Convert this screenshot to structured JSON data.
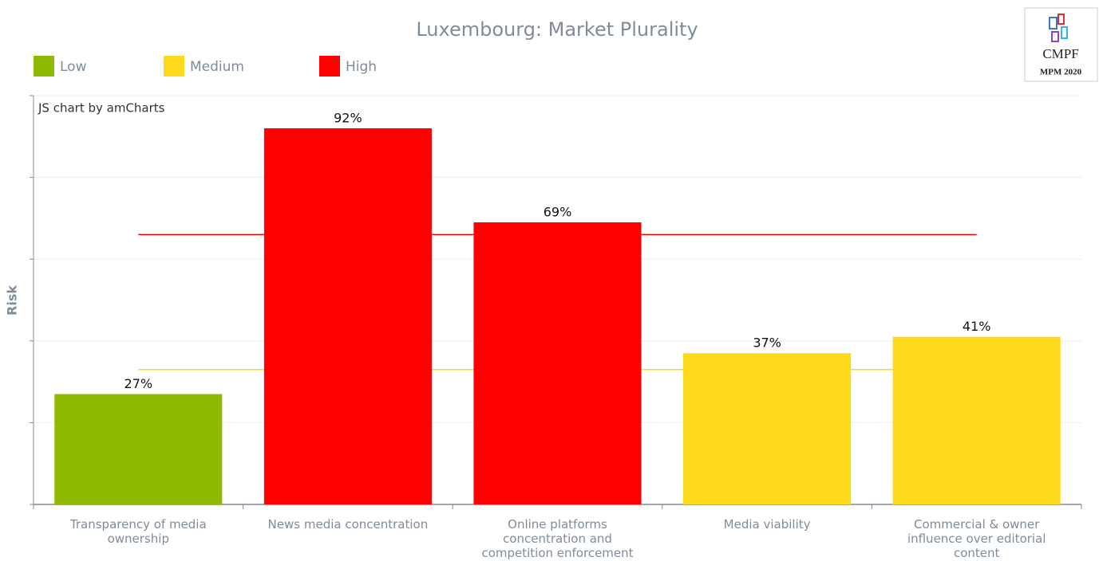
{
  "chart_data": {
    "type": "bar",
    "title": "Luxembourg: Market Plurality",
    "credit": "JS chart by amCharts",
    "ylabel": "Risk",
    "logo": {
      "name": "CMPF",
      "edition": "MPM 2020"
    },
    "legend": [
      {
        "name": "Low",
        "color": "#8fba00"
      },
      {
        "name": "Medium",
        "color": "#fcd91a"
      },
      {
        "name": "High",
        "color": "#ff0000"
      }
    ],
    "categories": [
      "Transparency of media ownership",
      "News media concentration",
      "Online platforms concentration and competition enforcement",
      "Media viability",
      "Commercial & owner influence over editorial content"
    ],
    "values": [
      27,
      92,
      69,
      37,
      41
    ],
    "value_labels": [
      "27%",
      "92%",
      "69%",
      "37%",
      "41%"
    ],
    "colors": [
      "#8fba00",
      "#ff0000",
      "#ff0000",
      "#fcd91a",
      "#fcd91a"
    ],
    "thresholds": [
      {
        "value": 66,
        "color": "#ff0000"
      },
      {
        "value": 33,
        "color": "#fcd91a"
      }
    ],
    "ylim": [
      0,
      100
    ],
    "yticks": [
      0,
      20,
      40,
      60,
      80,
      100
    ],
    "grid": true
  }
}
